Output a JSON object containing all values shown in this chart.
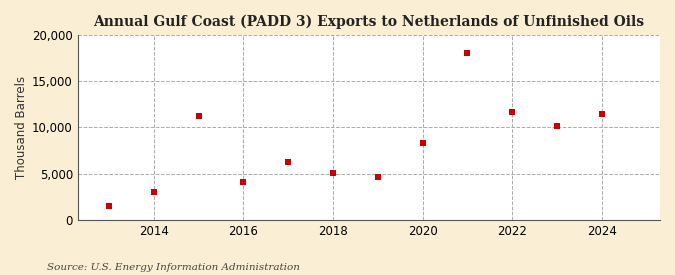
{
  "title": "Annual Gulf Coast (PADD 3) Exports to Netherlands of Unfinished Oils",
  "ylabel": "Thousand Barrels",
  "source": "Source: U.S. Energy Information Administration",
  "fig_background_color": "#faefd4",
  "plot_background_color": "#ffffff",
  "x": [
    2013,
    2014,
    2015,
    2016,
    2017,
    2018,
    2019,
    2020,
    2021,
    2022,
    2023,
    2024
  ],
  "y": [
    1500,
    3000,
    11200,
    4100,
    6300,
    5100,
    4700,
    8300,
    18000,
    11700,
    10200,
    11500
  ],
  "marker_color": "#cc0000",
  "marker_size": 5,
  "ylim": [
    0,
    20000
  ],
  "yticks": [
    0,
    5000,
    10000,
    15000,
    20000
  ],
  "xlim": [
    2012.3,
    2025.3
  ],
  "vgrid_x": [
    2014,
    2016,
    2018,
    2020,
    2022,
    2024
  ],
  "xtick_positions": [
    2014,
    2016,
    2018,
    2020,
    2022,
    2024
  ],
  "xtick_labels": [
    "2014",
    "2016",
    "2018",
    "2020",
    "2022",
    "2024"
  ],
  "grid_color": "#aaaaaa",
  "grid_linestyle": "--",
  "grid_linewidth": 0.7,
  "title_fontsize": 10,
  "label_fontsize": 8.5,
  "tick_fontsize": 8.5,
  "source_fontsize": 7.5,
  "spine_color": "#555555",
  "spine_linewidth": 0.8
}
